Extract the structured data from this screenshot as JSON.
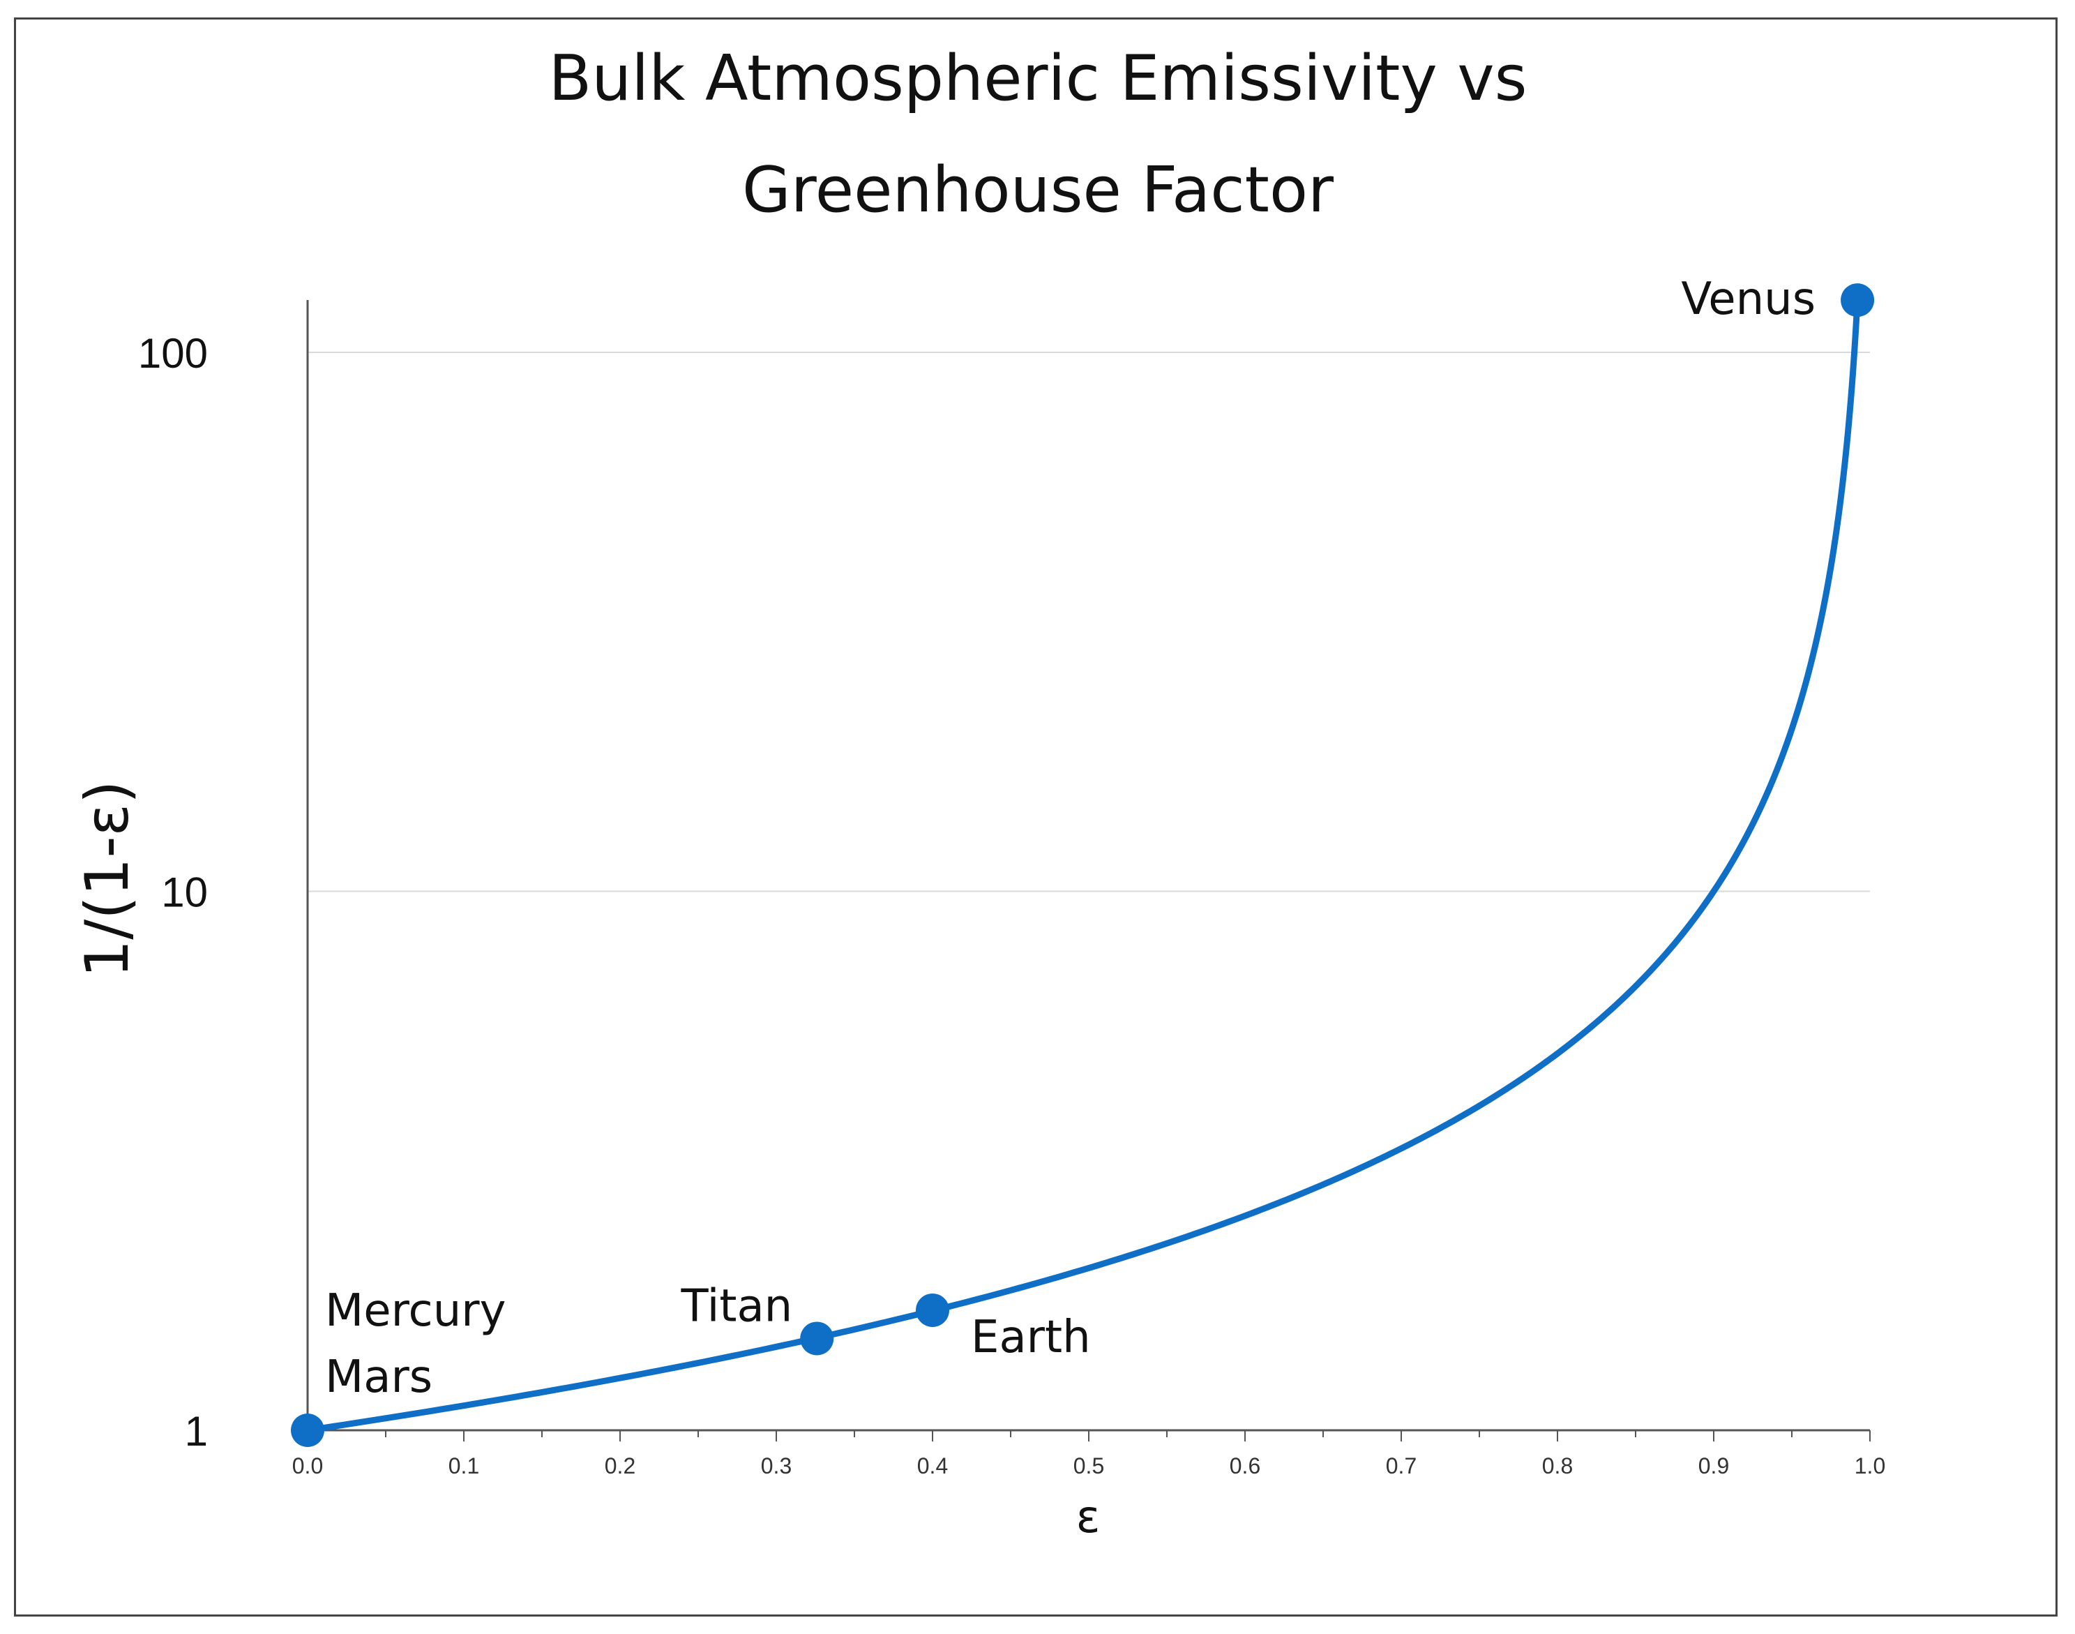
{
  "chart_data": {
    "type": "line",
    "title_lines": [
      "Bulk Atmospheric Emissivity vs",
      "Greenhouse Factor"
    ],
    "xlabel": "ε",
    "ylabel": "1/(1-ε)",
    "yscale": "log",
    "xlim": [
      0,
      1.0
    ],
    "ylim": [
      1,
      130
    ],
    "x_ticks": [
      "0.0",
      "0.1",
      "0.2",
      "0.3",
      "0.4",
      "0.5",
      "0.6",
      "0.7",
      "0.8",
      "0.9",
      "1.0"
    ],
    "y_ticks": [
      {
        "value": 1,
        "label": "1"
      },
      {
        "value": 10,
        "label": "10"
      },
      {
        "value": 100,
        "label": "100"
      }
    ],
    "grid": "horizontal",
    "series": [
      {
        "name": "1/(1-ε)",
        "function": "1/(1-x)",
        "x_range": [
          0,
          0.992
        ],
        "color": "#0f6fc6"
      }
    ],
    "points": [
      {
        "x": 0.0,
        "y": 1.0,
        "label_lines": [
          "Mercury",
          "Mars"
        ],
        "label_position": "top-right"
      },
      {
        "x": 0.326,
        "y": 1.48,
        "label_lines": [
          "Titan"
        ],
        "label_position": "top-left"
      },
      {
        "x": 0.4,
        "y": 1.67,
        "label_lines": [
          "Earth"
        ],
        "label_position": "bottom-right"
      },
      {
        "x": 0.992,
        "y": 125,
        "label_lines": [
          "Venus"
        ],
        "label_position": "left"
      }
    ],
    "colors": {
      "line": "#0f6fc6",
      "marker": "#0f6fc6",
      "grid": "#d9d9d9",
      "axis": "#555555",
      "text": "#111111"
    }
  }
}
